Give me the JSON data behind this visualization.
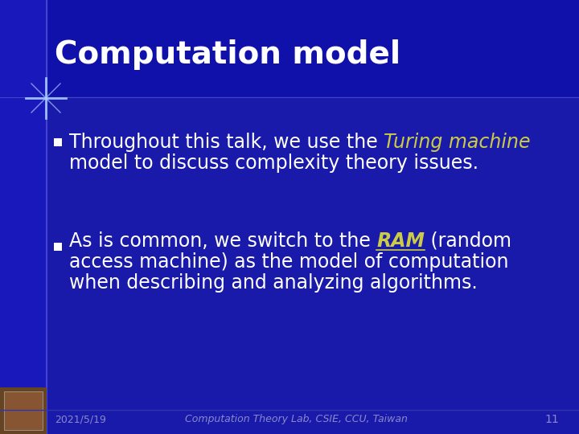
{
  "bg_color": "#1a1aaa",
  "title": "Computation model",
  "title_color": "#ffffff",
  "title_fontsize": 28,
  "title_bold": true,
  "bullet_color": "#ffffff",
  "bullet_fontsize": 17,
  "highlight_color": "#cccc44",
  "footer_color": "#8888cc",
  "footer_fontsize": 9,
  "footer_date": "2021/5/19",
  "footer_lab": "Computation Theory Lab, CSIE, CCU, Taiwan",
  "footer_page": "11",
  "left_bar_color": "#3333cc",
  "star_color": "#aaccff",
  "bullet1_pre": "Throughout this talk, we use the ",
  "bullet1_italic": "Turing machine",
  "bullet1_line2": "model to discuss complexity theory issues.",
  "bullet2_pre": "As is common, we switch to the ",
  "bullet2_italic": "RAM",
  "bullet2_post": " (random",
  "bullet2_line2": "access machine) as the model of computation",
  "bullet2_line3": "when describing and analyzing algorithms."
}
